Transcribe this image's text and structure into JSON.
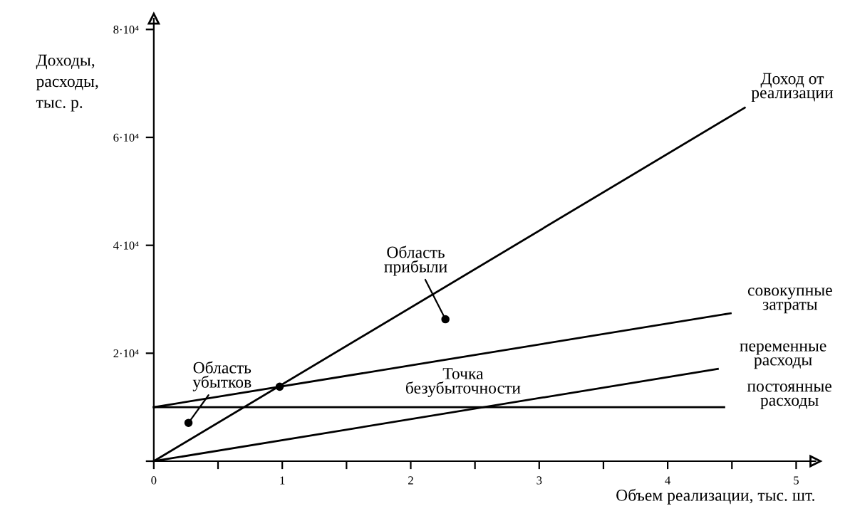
{
  "chart_data": {
    "type": "line",
    "xlabel": "Объем реализации, тыс. шт.",
    "ylabel": "Доходы,\nрасходы,\nтыс. р.",
    "xlim": [
      0,
      5.15
    ],
    "ylim": [
      0,
      82000
    ],
    "xticks": [
      0,
      {
        "value": 0.5,
        "label": null
      },
      1,
      {
        "value": 1.5,
        "label": null
      },
      2,
      {
        "value": 2.5,
        "label": null
      },
      3,
      {
        "value": 3.5,
        "label": null
      },
      4,
      {
        "value": 4.5,
        "label": null
      },
      5
    ],
    "yticks": [
      {
        "value": 0,
        "label": null
      },
      {
        "value": 20000,
        "label": "2·10⁴"
      },
      {
        "value": 40000,
        "label": "4·10⁴"
      },
      {
        "value": 60000,
        "label": "6·10⁴"
      },
      {
        "value": 80000,
        "label": "8·10⁴"
      }
    ],
    "series": [
      {
        "name": "Доход от\nреализации",
        "color": "#000000",
        "x": [
          0,
          4.6
        ],
        "values": [
          0,
          65500
        ]
      },
      {
        "name": "совокупные\nзатраты",
        "color": "#000000",
        "x": [
          0,
          4.49
        ],
        "values": [
          10000,
          27400
        ]
      },
      {
        "name": "переменные\nрасходы",
        "color": "#000000",
        "x": [
          0,
          4.39
        ],
        "values": [
          0,
          17100
        ]
      },
      {
        "name": "постоянные\nрасходы",
        "color": "#000000",
        "x": [
          0,
          4.44
        ],
        "values": [
          10000,
          10000
        ]
      },
      {
        "type": "scatter",
        "color": "#000000",
        "x": [
          2.27,
          0.27,
          0.98
        ],
        "values": [
          26300,
          7100,
          13800
        ]
      }
    ],
    "annotations": [
      {
        "text": "Область\nприбыли",
        "x": 2.27,
        "y": 26300
      },
      {
        "text": "Область\nубытков",
        "x": 0.27,
        "y": 7100
      },
      "Точка\nбезубыточности"
    ],
    "line_style": "solid",
    "grid": false,
    "legend": false
  }
}
